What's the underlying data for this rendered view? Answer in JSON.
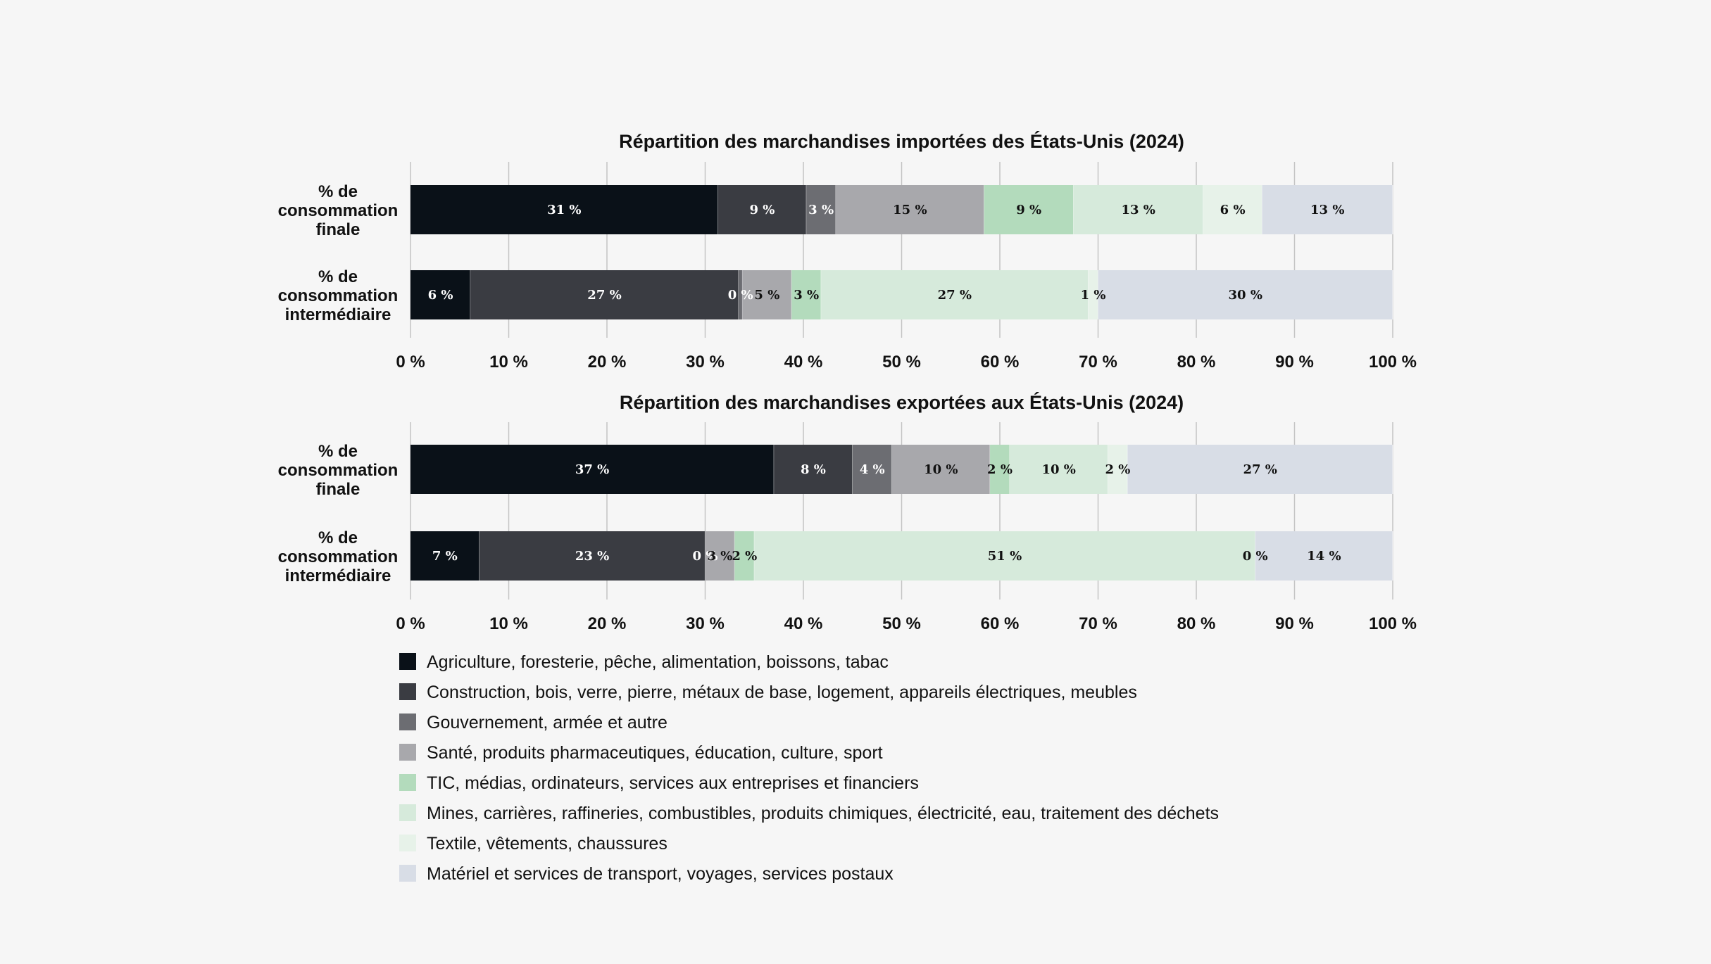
{
  "chart_data": {
    "type": "bar",
    "stacked": true,
    "orientation": "horizontal",
    "xlim": [
      0,
      100
    ],
    "grid": true,
    "legend_position": "bottom",
    "x_ticks": [
      "0 %",
      "10 %",
      "20 %",
      "30 %",
      "40 %",
      "50 %",
      "60 %",
      "70 %",
      "80 %",
      "90 %",
      "100 %"
    ],
    "categories": [
      {
        "name": "Agriculture, foresterie, pêche, alimentation, boissons, tabac",
        "color": "#0a1118",
        "label_color": "#ffffff"
      },
      {
        "name": "Construction, bois, verre, pierre, métaux de base, logement, appareils électriques, meubles",
        "color": "#3a3c42",
        "label_color": "#ffffff"
      },
      {
        "name": "Gouvernement, armée et autre",
        "color": "#6c6d72",
        "label_color": "#ffffff"
      },
      {
        "name": "Santé, produits pharmaceutiques, éducation, culture, sport",
        "color": "#a8a8ac",
        "label_color": "#111111"
      },
      {
        "name": "TIC, médias, ordinateurs, services aux entreprises et financiers",
        "color": "#b3dbbc",
        "label_color": "#111111"
      },
      {
        "name": "Mines, carrières, raffineries, combustibles, produits chimiques, électricité, eau, traitement des déchets",
        "color": "#d6eadb",
        "label_color": "#111111"
      },
      {
        "name": "Textile, vêtements, chaussures",
        "color": "#e7f2e9",
        "label_color": "#111111"
      },
      {
        "name": "Matériel et services de transport, voyages, services postaux",
        "color": "#d8dde6",
        "label_color": "#111111"
      }
    ],
    "charts": [
      {
        "title": "Répartition des marchandises importées des États-Unis (2024)",
        "rows": [
          {
            "label": [
              "% de",
              "consommation",
              "finale"
            ],
            "values": [
              31.3,
              9.0,
              3.0,
              15.1,
              9.1,
              13.2,
              6.0,
              13.3
            ],
            "labels": [
              "31 %",
              "9 %",
              "3 %",
              "15 %",
              "9 %",
              "13 %",
              "6 %",
              "13 %"
            ]
          },
          {
            "label": [
              "% de",
              "consommation",
              "intermédiaire"
            ],
            "values": [
              6.1,
              27.3,
              0.4,
              5.0,
              3.0,
              27.2,
              1.0,
              30.0
            ],
            "labels": [
              "6 %",
              "27 %",
              "0 %",
              "5 %",
              "3 %",
              "27 %",
              "1 %",
              "30 %"
            ]
          }
        ]
      },
      {
        "title": "Répartition des marchandises exportées aux États-Unis (2024)",
        "rows": [
          {
            "label": [
              "% de",
              "consommation",
              "finale"
            ],
            "values": [
              37.0,
              8.0,
              4.0,
              10.0,
              2.0,
              10.0,
              2.0,
              27.0
            ],
            "labels": [
              "37 %",
              "8 %",
              "4 %",
              "10 %",
              "2 %",
              "10 %",
              "2 %",
              "27 %"
            ]
          },
          {
            "label": [
              "% de",
              "consommation",
              "intermédiaire"
            ],
            "values": [
              7.0,
              23.0,
              0.0,
              3.0,
              2.0,
              51.0,
              0.0,
              14.0
            ],
            "labels": [
              "7 %",
              "23 %",
              "0 %",
              "3 %",
              "2 %",
              "51 %",
              "0 %",
              "14 %"
            ]
          }
        ]
      }
    ]
  }
}
